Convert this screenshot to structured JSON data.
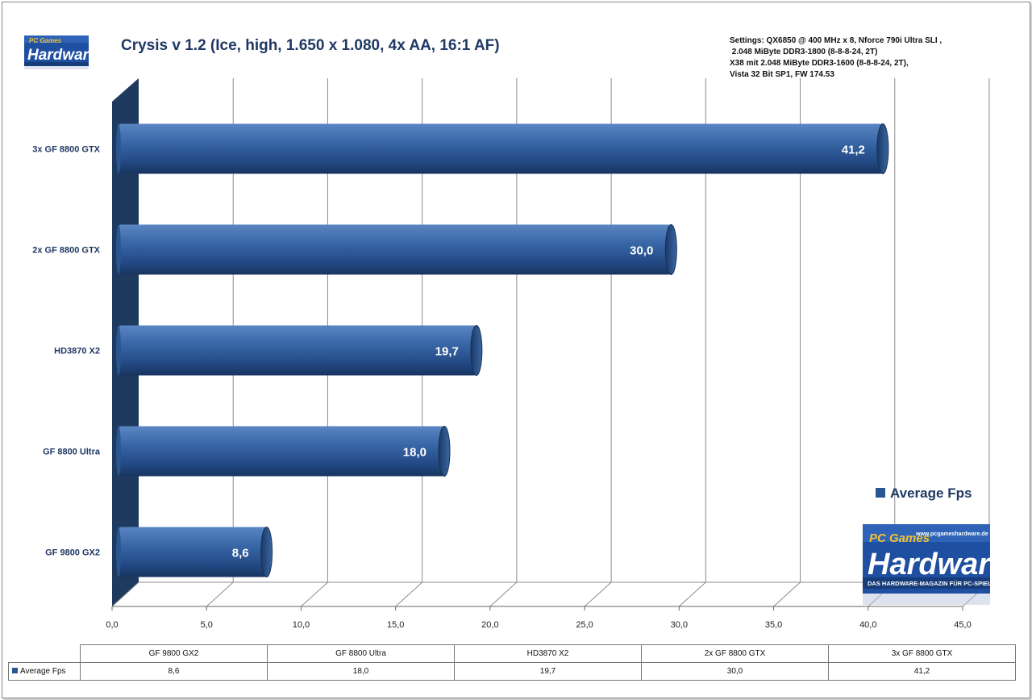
{
  "chart_data": {
    "type": "bar",
    "orientation": "horizontal",
    "title": "Crysis v 1.2 (Ice, high, 1.650 x 1.080, 4x AA, 16:1 AF)",
    "categories": [
      "3x GF 8800  GTX",
      "2x GF 8800  GTX",
      "HD3870  X2",
      "GF 8800  Ultra",
      "GF 9800  GX2"
    ],
    "series": [
      {
        "name": "Average Fps",
        "values": [
          41.2,
          30.0,
          19.7,
          18.0,
          8.6
        ],
        "labels": [
          "41,2",
          "30,0",
          "19,7",
          "18,0",
          "8,6"
        ]
      }
    ],
    "xlim": [
      0,
      45
    ],
    "ticks": [
      "0,0",
      "5,0",
      "10,0",
      "15,0",
      "20,0",
      "25,0",
      "30,0",
      "35,0",
      "40,0",
      "45,0"
    ],
    "grid": true,
    "legend_position": "bottom-right",
    "colors": {
      "bar": "#2a5592",
      "bar_dark": "#1b3a66",
      "wall": "#1e3a5f"
    }
  },
  "settings": {
    "lines": [
      "Settings: QX6850 @ 400 MHz x 8, Nforce 790i Ultra SLI ,",
      " 2.048 MiByte DDR3-1800 (8-8-8-24, 2T)",
      "X38 mit 2.048 MiByte DDR3-1600 (8-8-8-24, 2T),",
      "Vista 32 Bit SP1, FW 174.53"
    ]
  },
  "legend": {
    "label": "Average Fps"
  },
  "data_table": {
    "headers": [
      "GF 9800 GX2",
      "GF 8800 Ultra",
      "HD3870 X2",
      "2x GF 8800 GTX",
      "3x GF 8800 GTX"
    ],
    "row_label": "Average Fps",
    "values": [
      "8,6",
      "18,0",
      "19,7",
      "30,0",
      "41,2"
    ]
  },
  "logo": {
    "top": "PC Games",
    "main": "Hardware",
    "url": "www.pcgameshardware.de",
    "tagline": "DAS HARDWARE-MAGAZIN FÜR PC-SPIELER"
  }
}
